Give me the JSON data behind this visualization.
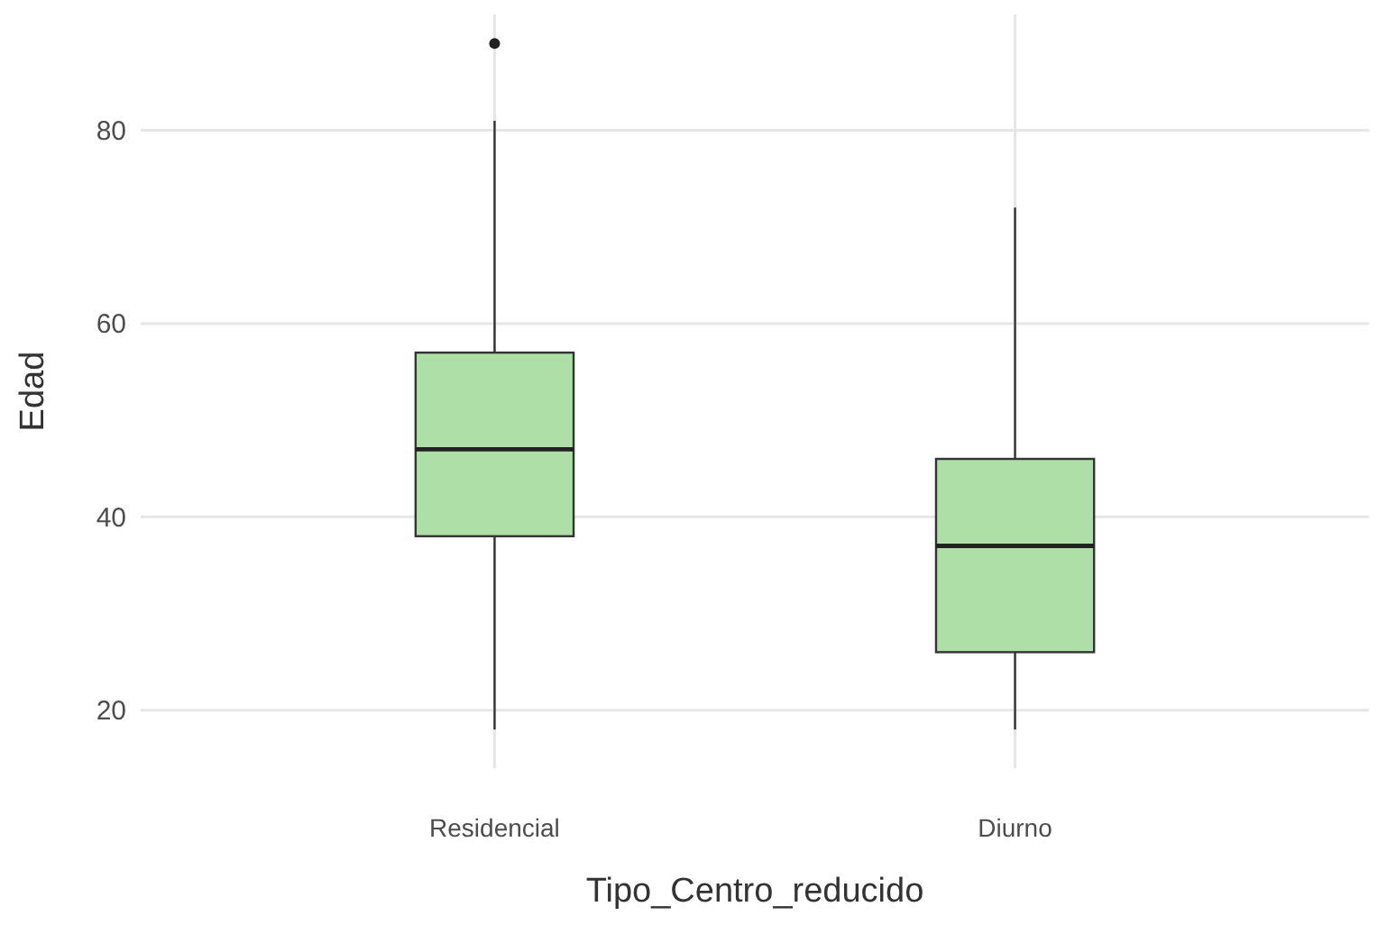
{
  "chart_data": {
    "type": "box",
    "xlabel": "Tipo_Centro_reducido",
    "ylabel": "Edad",
    "categories": [
      "Residencial",
      "Diurno"
    ],
    "color": "#addfa6",
    "boxes": [
      {
        "low": 18,
        "q1": 38,
        "median": 47,
        "q3": 57,
        "high": 81,
        "outliers": [
          89
        ]
      },
      {
        "low": 18,
        "q1": 26,
        "median": 37,
        "q3": 46,
        "high": 72
      }
    ],
    "ylim": [
      14,
      92
    ],
    "yticks": [
      20,
      40,
      60,
      80
    ],
    "grid": true
  }
}
